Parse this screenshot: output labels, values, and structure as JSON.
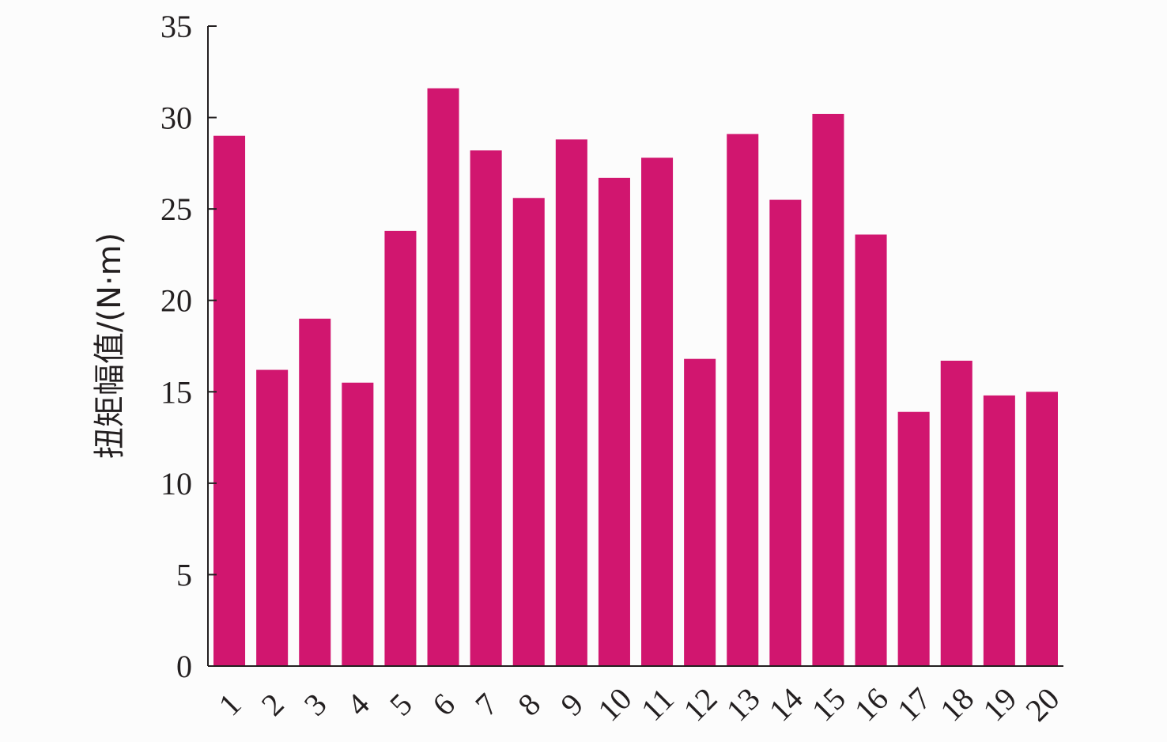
{
  "chart_data": {
    "type": "bar",
    "title": "",
    "xlabel": "",
    "ylabel": "扭矩幅值/(N·m)",
    "categories": [
      "1",
      "2",
      "3",
      "4",
      "5",
      "6",
      "7",
      "8",
      "9",
      "10",
      "11",
      "12",
      "13",
      "14",
      "15",
      "16",
      "17",
      "18",
      "19",
      "20"
    ],
    "values": [
      29.0,
      16.2,
      19.0,
      15.5,
      23.8,
      31.6,
      28.2,
      25.6,
      28.8,
      26.7,
      27.8,
      16.8,
      29.1,
      25.5,
      30.2,
      23.6,
      13.9,
      16.7,
      14.8,
      15.0
    ],
    "ylim": [
      0,
      35
    ],
    "yticks": [
      "0",
      "5",
      "10",
      "15",
      "20",
      "25",
      "30",
      "35"
    ],
    "grid": false,
    "bar_color": "#d1166f"
  }
}
